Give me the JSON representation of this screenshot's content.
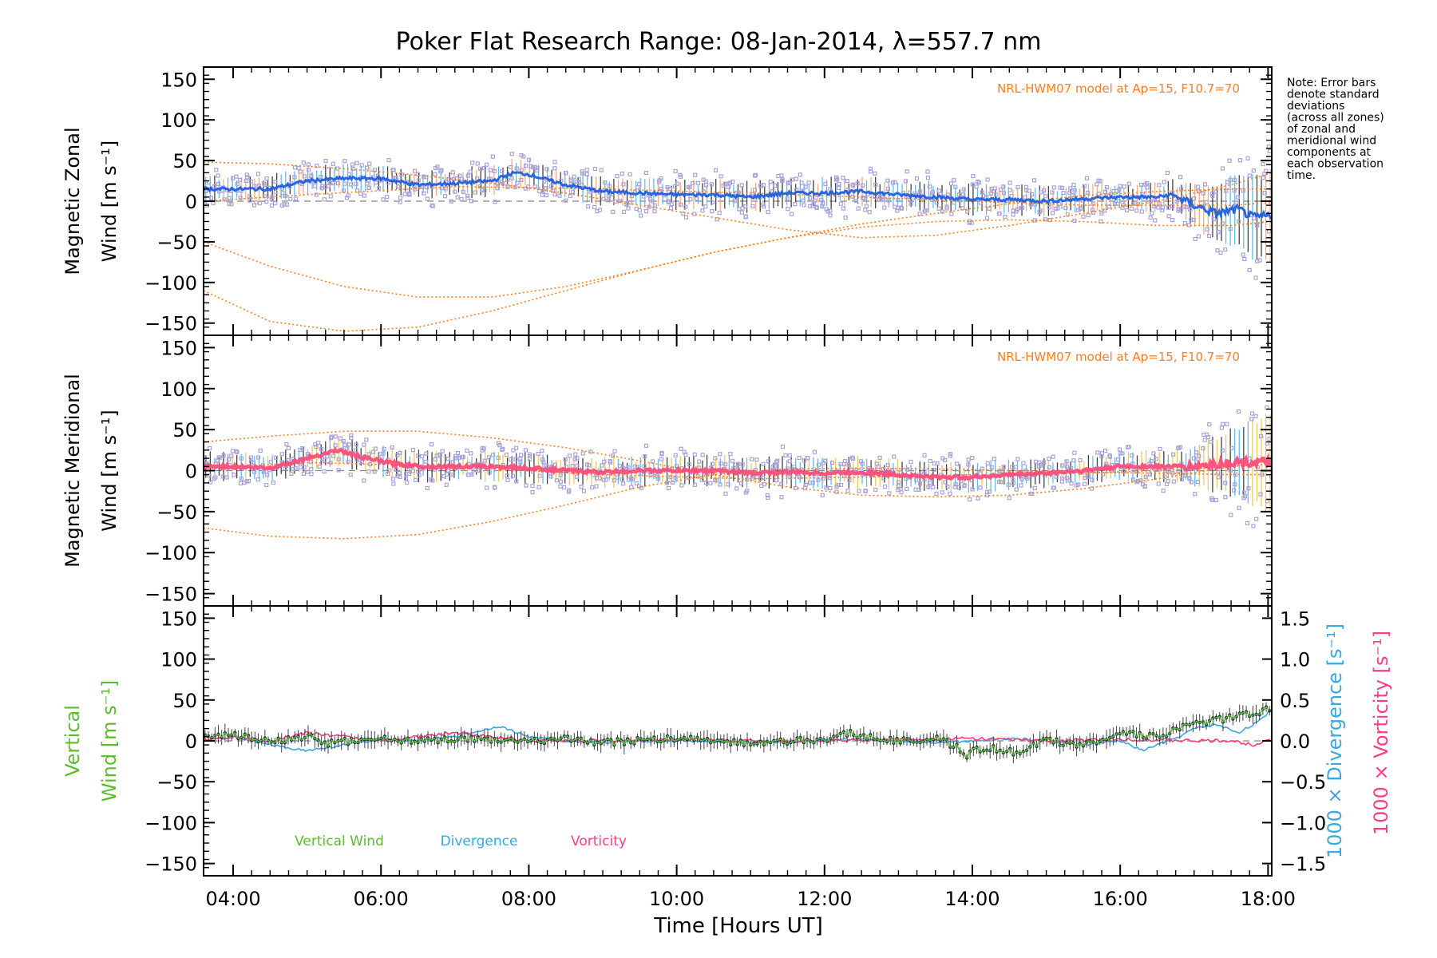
{
  "chart_data": {
    "title": "Poker Flat Research Range: 08-Jan-2014, λ=557.7 nm",
    "xlabel": "Time [Hours UT]",
    "x_unit": "hours UT",
    "xlim": [
      3.6,
      18.05
    ],
    "x_ticks": [
      4,
      6,
      8,
      10,
      12,
      14,
      16,
      18
    ],
    "x_tick_labels": [
      "04:00",
      "06:00",
      "08:00",
      "10:00",
      "12:00",
      "14:00",
      "16:00",
      "18:00"
    ],
    "note": [
      "Note: Error bars",
      "denote standard",
      "deviations",
      "(across all zones)",
      "of zonal and",
      "meridional wind",
      "components at",
      "each observation",
      "time."
    ],
    "colors": {
      "model": "#ff7f1e",
      "zonal": "#1f5fe0",
      "zonal_band": "#4ab0e8",
      "meridional": "#ff4d7a",
      "scatter": "#a9a3d8",
      "vertical": "#5dbb2e",
      "divergence": "#3aa7dd",
      "vorticity": "#ff3d7f"
    },
    "panels": [
      {
        "type": "line",
        "ylabel": [
          "Magnetic Zonal",
          "Wind [m s⁻¹]"
        ],
        "ylim": [
          -165,
          165
        ],
        "y_ticks": [
          -150,
          -100,
          -50,
          0,
          50,
          100,
          150
        ],
        "model_label": "NRL-HWM07 model at Ap=15, F10.7=70",
        "observed": {
          "x": [
            3.6,
            4.0,
            4.5,
            5.0,
            5.5,
            6.0,
            6.5,
            7.0,
            7.5,
            7.8,
            8.0,
            8.3,
            8.5,
            9.0,
            9.5,
            10.0,
            10.5,
            11.0,
            11.5,
            12.0,
            12.5,
            13.0,
            13.5,
            14.0,
            14.5,
            15.0,
            15.5,
            16.0,
            16.5,
            16.7,
            17.0,
            17.3,
            17.6,
            17.8,
            18.0
          ],
          "y": [
            15,
            15,
            15,
            25,
            28,
            28,
            20,
            22,
            25,
            35,
            33,
            25,
            20,
            12,
            10,
            8,
            8,
            5,
            10,
            10,
            12,
            8,
            5,
            2,
            2,
            0,
            3,
            5,
            5,
            8,
            -5,
            -15,
            -10,
            -20,
            -18
          ]
        },
        "model_curves": [
          {
            "x": [
              3.6,
              4.5,
              5.5,
              6.5,
              7.5,
              8.5,
              9.5,
              10.5,
              11.5,
              12.5,
              13.5,
              14.5,
              15.5,
              16.5,
              17.5,
              18.05
            ],
            "y": [
              48,
              46,
              40,
              32,
              22,
              10,
              -5,
              -20,
              -35,
              -45,
              -42,
              -30,
              -15,
              0,
              20,
              35
            ]
          },
          {
            "x": [
              3.6,
              4.5,
              5.5,
              6.5,
              7.5,
              8.5,
              9.5,
              10.5,
              11.5,
              12.5,
              13.5,
              14.5,
              15.5,
              16.5,
              17.5,
              18.05
            ],
            "y": [
              -50,
              -80,
              -105,
              -118,
              -118,
              -105,
              -85,
              -63,
              -45,
              -32,
              -25,
              -23,
              -25,
              -30,
              -30,
              -25
            ]
          },
          {
            "x": [
              3.6,
              4.5,
              5.5,
              6.5,
              7.5,
              8.5,
              9.5,
              10.5,
              11.5,
              12.5,
              13.5,
              14.5,
              15.5,
              16.5,
              17.5,
              18.05
            ],
            "y": [
              -110,
              -148,
              -160,
              -155,
              -135,
              -110,
              -85,
              -63,
              -45,
              -28,
              -15,
              -3,
              7,
              12,
              15,
              15
            ]
          },
          {
            "x": [
              3.6,
              5.0,
              7.0,
              9.0,
              11.0,
              12.5,
              14.0,
              15.5,
              16.5,
              17.5,
              18.05
            ],
            "y": [
              0,
              8,
              18,
              15,
              10,
              5,
              0,
              -5,
              -5,
              -5,
              -2
            ]
          }
        ]
      },
      {
        "type": "line",
        "ylabel": [
          "Magnetic Meridional",
          "Wind [m s⁻¹]"
        ],
        "ylim": [
          -165,
          165
        ],
        "y_ticks": [
          -150,
          -100,
          -50,
          0,
          50,
          100,
          150
        ],
        "model_label": "NRL-HWM07 model at Ap=15, F10.7=70",
        "observed": {
          "x": [
            3.6,
            4.0,
            4.5,
            5.0,
            5.4,
            5.8,
            6.2,
            6.6,
            7.0,
            7.5,
            8.0,
            8.5,
            9.0,
            9.5,
            10.0,
            10.5,
            11.0,
            11.5,
            12.0,
            12.5,
            13.0,
            13.5,
            14.0,
            14.5,
            15.0,
            15.5,
            16.0,
            16.5,
            17.0,
            17.5,
            18.0
          ],
          "y": [
            5,
            5,
            3,
            15,
            25,
            15,
            8,
            5,
            5,
            5,
            3,
            0,
            -2,
            0,
            0,
            0,
            -3,
            -2,
            -3,
            -2,
            -5,
            -8,
            -8,
            -5,
            -3,
            0,
            5,
            5,
            5,
            10,
            10
          ]
        },
        "model_curves": [
          {
            "x": [
              3.6,
              4.5,
              5.5,
              6.5,
              7.5,
              8.5,
              9.5,
              10.5,
              11.5,
              12.5,
              13.5,
              14.5,
              15.5,
              16.5,
              17.5,
              18.05
            ],
            "y": [
              35,
              42,
              48,
              48,
              40,
              28,
              12,
              -5,
              -20,
              -30,
              -32,
              -30,
              -22,
              -10,
              5,
              12
            ]
          },
          {
            "x": [
              3.6,
              4.5,
              5.5,
              6.5,
              7.5,
              8.5,
              9.5,
              10.5,
              11.5,
              12.5,
              13.5,
              14.5,
              15.5,
              16.5,
              17.5,
              18.05
            ],
            "y": [
              -70,
              -80,
              -83,
              -78,
              -62,
              -42,
              -20,
              -5,
              2,
              3,
              2,
              0,
              -2,
              -3,
              -5,
              -5
            ]
          },
          {
            "x": [
              3.6,
              5.0,
              7.0,
              9.0,
              11.0,
              12.5,
              14.0,
              15.5,
              16.5,
              17.5,
              18.05
            ],
            "y": [
              2,
              10,
              5,
              -5,
              -10,
              -8,
              -5,
              -3,
              0,
              5,
              8
            ]
          }
        ]
      },
      {
        "type": "line",
        "ylabel": [
          "Vertical",
          "Wind [m s⁻¹]"
        ],
        "ylim": [
          -165,
          165
        ],
        "y_ticks": [
          -150,
          -100,
          -50,
          0,
          50,
          100,
          150
        ],
        "y2label_divergence": "1000 × Divergence [s⁻¹]",
        "y2label_vorticity": "1000 × Vorticity [s⁻¹]",
        "y2lim": [
          -1.65,
          1.65
        ],
        "y2_ticks": [
          -1.5,
          -1.0,
          -0.5,
          0.0,
          0.5,
          1.0,
          1.5
        ],
        "y2_tick_labels": [
          "−1.5",
          "−1.0",
          "−0.5",
          "0.0",
          "0.5",
          "1.0",
          "1.5"
        ],
        "legend": [
          "Vertical Wind",
          "Divergence",
          "Vorticity"
        ],
        "series": [
          {
            "name": "Vertical Wind",
            "x": [
              3.6,
              4.0,
              4.3,
              4.6,
              5.0,
              5.3,
              5.6,
              6.0,
              6.5,
              7.0,
              7.5,
              8.0,
              8.5,
              9.0,
              9.5,
              10.0,
              10.5,
              11.0,
              11.5,
              12.0,
              12.3,
              12.5,
              13.0,
              13.5,
              13.8,
              13.9,
              14.0,
              14.3,
              14.6,
              14.8,
              15.0,
              15.5,
              16.0,
              16.5,
              16.8,
              17.0,
              17.3,
              17.6,
              17.9,
              18.0
            ],
            "y": [
              5,
              8,
              2,
              0,
              5,
              -3,
              0,
              3,
              0,
              2,
              0,
              0,
              2,
              -2,
              0,
              3,
              0,
              -3,
              0,
              2,
              10,
              5,
              0,
              3,
              -8,
              -20,
              -10,
              -10,
              -15,
              -5,
              0,
              -5,
              10,
              5,
              15,
              20,
              25,
              30,
              35,
              40
            ]
          },
          {
            "name": "Divergence",
            "x": [
              3.6,
              4.0,
              4.5,
              5.0,
              5.5,
              6.0,
              6.5,
              7.0,
              7.6,
              8.0,
              8.5,
              9.0,
              9.5,
              10.0,
              11.0,
              12.0,
              12.5,
              13.0,
              13.5,
              14.0,
              14.5,
              15.0,
              15.5,
              16.0,
              16.3,
              16.5,
              16.8,
              17.0,
              17.3,
              17.6,
              17.9,
              18.05
            ],
            "y": [
              0.0,
              0.05,
              -0.05,
              -0.12,
              -0.05,
              0.02,
              0.0,
              0.05,
              0.18,
              0.05,
              0.0,
              -0.02,
              0.0,
              0.0,
              -0.02,
              0.0,
              0.02,
              0.0,
              -0.02,
              0.0,
              0.03,
              0.0,
              -0.05,
              0.0,
              -0.12,
              -0.05,
              0.05,
              0.15,
              0.2,
              0.1,
              0.25,
              0.4
            ]
          },
          {
            "name": "Vorticity",
            "x": [
              3.6,
              4.0,
              4.5,
              5.0,
              5.5,
              6.0,
              6.5,
              7.0,
              7.5,
              8.0,
              9.0,
              10.0,
              11.0,
              12.0,
              13.0,
              14.0,
              15.0,
              16.0,
              17.0,
              17.5,
              17.8,
              18.0
            ],
            "y": [
              0.02,
              0.05,
              0.0,
              0.1,
              0.05,
              0.0,
              0.05,
              0.1,
              0.05,
              0.0,
              0.0,
              0.02,
              0.0,
              0.0,
              0.02,
              0.03,
              0.0,
              0.02,
              0.0,
              0.0,
              -0.05,
              0.02
            ]
          }
        ]
      }
    ]
  }
}
